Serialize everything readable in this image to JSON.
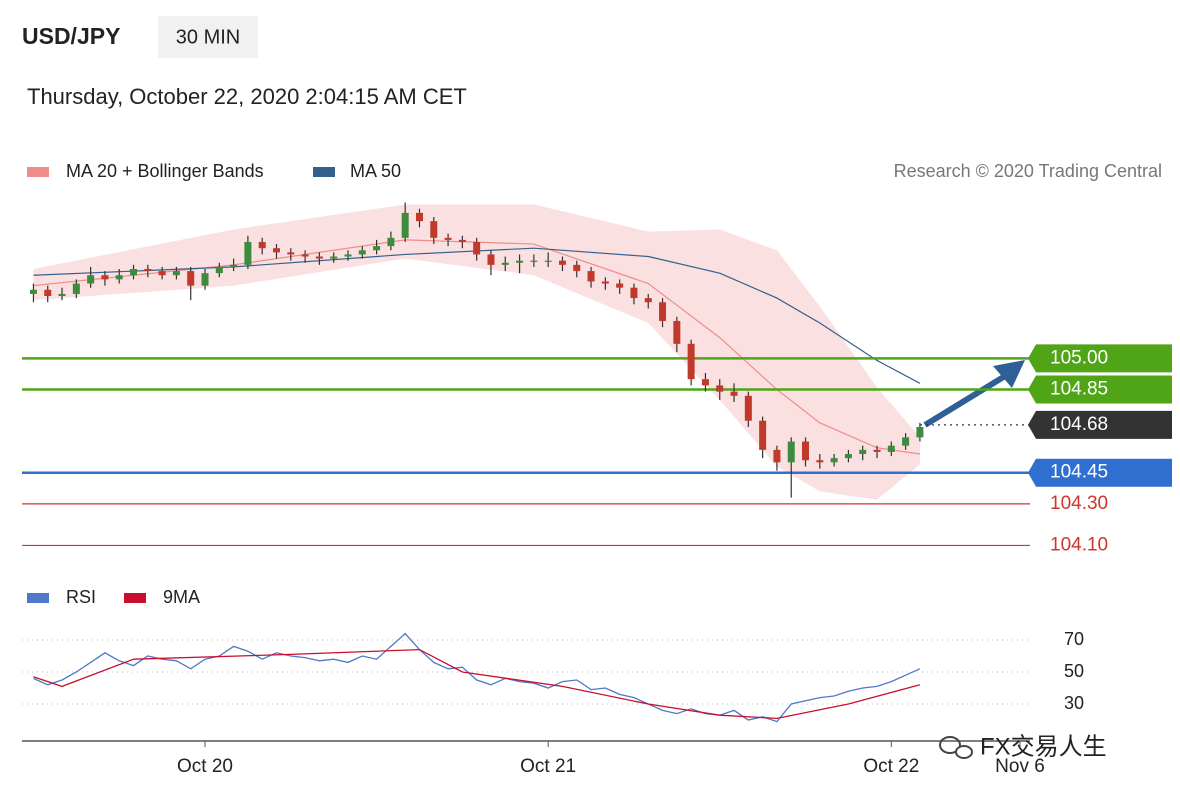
{
  "header": {
    "symbol": "USD/JPY",
    "interval": "30 MIN",
    "timestamp": "Thursday, October 22, 2020 2:04:15 AM CET",
    "source": "Research © 2020 Trading Central"
  },
  "watermark": "FX交易人生",
  "chart_data": [
    {
      "type": "candlestick",
      "up_color": "#3d8b3d",
      "down_color": "#c0392b",
      "xlim": [
        -25.6,
        115.4
      ],
      "ylim": [
        104.03,
        105.81
      ],
      "x": [
        -24,
        -22,
        -20,
        -18,
        -16,
        -14,
        -12,
        -10,
        -8,
        -6,
        -4,
        -2,
        0,
        2,
        4,
        6,
        8,
        10,
        12,
        14,
        16,
        18,
        20,
        22,
        24,
        26,
        28,
        30,
        32,
        34,
        36,
        38,
        40,
        42,
        44,
        46,
        48,
        50,
        52,
        54,
        56,
        58,
        60,
        62,
        64,
        66,
        68,
        70,
        72,
        74,
        76,
        78,
        80,
        82,
        84,
        86,
        88,
        90,
        92,
        94,
        96,
        98,
        100
      ],
      "open": [
        105.31,
        105.33,
        105.3,
        105.31,
        105.36,
        105.4,
        105.38,
        105.4,
        105.43,
        105.42,
        105.4,
        105.42,
        105.35,
        105.41,
        105.44,
        105.45,
        105.56,
        105.53,
        105.51,
        105.5,
        105.49,
        105.48,
        105.49,
        105.5,
        105.52,
        105.54,
        105.58,
        105.7,
        105.66,
        105.58,
        105.57,
        105.56,
        105.5,
        105.45,
        105.46,
        105.47,
        105.47,
        105.47,
        105.45,
        105.42,
        105.37,
        105.36,
        105.34,
        105.29,
        105.27,
        105.18,
        105.07,
        104.9,
        104.87,
        104.84,
        104.82,
        104.7,
        104.56,
        104.5,
        104.6,
        104.51,
        104.5,
        104.52,
        104.54,
        104.56,
        104.55,
        104.58,
        104.62
      ],
      "high": [
        105.36,
        105.35,
        105.34,
        105.38,
        105.44,
        105.42,
        105.43,
        105.45,
        105.45,
        105.44,
        105.44,
        105.44,
        105.43,
        105.46,
        105.48,
        105.59,
        105.58,
        105.55,
        105.53,
        105.52,
        105.51,
        105.51,
        105.52,
        105.54,
        105.57,
        105.61,
        105.75,
        105.72,
        105.68,
        105.6,
        105.59,
        105.58,
        105.52,
        105.49,
        105.5,
        105.5,
        105.51,
        105.49,
        105.47,
        105.44,
        105.39,
        105.38,
        105.36,
        105.31,
        105.29,
        105.2,
        105.09,
        104.93,
        104.9,
        104.88,
        104.84,
        104.72,
        104.58,
        104.62,
        104.62,
        104.54,
        104.54,
        104.56,
        104.58,
        104.58,
        104.6,
        104.64,
        104.69
      ],
      "low": [
        105.27,
        105.27,
        105.28,
        105.29,
        105.34,
        105.35,
        105.36,
        105.38,
        105.39,
        105.38,
        105.38,
        105.28,
        105.33,
        105.39,
        105.42,
        105.43,
        105.5,
        105.48,
        105.47,
        105.46,
        105.45,
        105.46,
        105.47,
        105.48,
        105.5,
        105.52,
        105.56,
        105.63,
        105.55,
        105.54,
        105.53,
        105.47,
        105.4,
        105.42,
        105.41,
        105.44,
        105.44,
        105.42,
        105.39,
        105.34,
        105.33,
        105.31,
        105.26,
        105.24,
        105.15,
        105.03,
        104.87,
        104.84,
        104.8,
        104.79,
        104.67,
        104.52,
        104.46,
        104.33,
        104.48,
        104.47,
        104.48,
        104.5,
        104.51,
        104.52,
        104.53,
        104.56,
        104.6
      ],
      "close": [
        105.33,
        105.3,
        105.31,
        105.36,
        105.4,
        105.38,
        105.4,
        105.43,
        105.42,
        105.4,
        105.42,
        105.35,
        105.41,
        105.44,
        105.45,
        105.56,
        105.53,
        105.51,
        105.5,
        105.49,
        105.48,
        105.49,
        105.5,
        105.52,
        105.54,
        105.58,
        105.7,
        105.66,
        105.58,
        105.57,
        105.56,
        105.5,
        105.45,
        105.46,
        105.47,
        105.47,
        105.47,
        105.45,
        105.42,
        105.37,
        105.36,
        105.34,
        105.29,
        105.27,
        105.18,
        105.07,
        104.9,
        104.87,
        104.84,
        104.82,
        104.7,
        104.56,
        104.5,
        104.6,
        104.51,
        104.5,
        104.52,
        104.54,
        104.56,
        104.55,
        104.58,
        104.62,
        104.67
      ],
      "overlay_x": [
        -24,
        4,
        28,
        46,
        62,
        72,
        80,
        86,
        94,
        100
      ],
      "bands": {
        "name": "MA 20 + Bollinger Bands",
        "color": "#f08c8c",
        "fill": "#f8d3d3",
        "middle": [
          105.35,
          105.45,
          105.57,
          105.55,
          105.36,
          105.1,
          104.85,
          104.69,
          104.57,
          104.54
        ],
        "upper": [
          105.43,
          105.62,
          105.74,
          105.74,
          105.61,
          105.62,
          105.52,
          105.25,
          104.86,
          104.62
        ],
        "lower": [
          105.28,
          105.35,
          105.48,
          105.4,
          105.17,
          104.8,
          104.48,
          104.36,
          104.32,
          104.49
        ]
      },
      "ma50": {
        "name": "MA 50",
        "color": "#34608f",
        "values": [
          105.4,
          105.44,
          105.5,
          105.53,
          105.49,
          105.41,
          105.29,
          105.17,
          104.99,
          104.88
        ]
      },
      "levels": [
        {
          "value": 105,
          "label": "105.00",
          "color": "#4fa516",
          "boxed": true,
          "dashed": false
        },
        {
          "value": 104.85,
          "color": "#4fa516",
          "boxed": true,
          "dashed": false
        },
        {
          "value": 104.68,
          "color": "#333333",
          "boxed": true,
          "dashed": true
        },
        {
          "value": 104.45,
          "color": "#2f6fd0",
          "boxed": true,
          "dashed": false
        },
        {
          "value": 104.3,
          "label": "104.30",
          "color": "#d0342c",
          "boxed": false,
          "dashed": false
        },
        {
          "value": 104.1,
          "label": "104.10",
          "color": "#d0342c",
          "boxed": false,
          "dashed": false
        }
      ]
    },
    {
      "type": "line",
      "xlim": [
        -25.6,
        115.4
      ],
      "ylim": [
        7.5,
        82.5
      ],
      "yticks": [
        30,
        50,
        70
      ],
      "xticks": [
        {
          "value": 0,
          "label": "Oct 20"
        },
        {
          "value": 48,
          "label": "Oct 21"
        },
        {
          "value": 96,
          "label": "Oct 22"
        },
        {
          "value": 114,
          "label": "Nov 6"
        }
      ],
      "series": [
        {
          "name": "RSI",
          "color": "#4e79c8",
          "x": [
            -24,
            -22,
            -20,
            -18,
            -16,
            -14,
            -12,
            -10,
            -8,
            -6,
            -4,
            -2,
            0,
            2,
            4,
            6,
            8,
            10,
            12,
            14,
            16,
            18,
            20,
            22,
            24,
            26,
            28,
            30,
            32,
            34,
            36,
            38,
            40,
            42,
            44,
            46,
            48,
            50,
            52,
            54,
            56,
            58,
            60,
            62,
            64,
            66,
            68,
            70,
            72,
            74,
            76,
            78,
            80,
            82,
            84,
            86,
            88,
            90,
            92,
            94,
            96,
            98,
            100
          ],
          "values": [
            46,
            42,
            45,
            50,
            56,
            62,
            57,
            54,
            60,
            58,
            57,
            52,
            58,
            60,
            66,
            63,
            58,
            62,
            60,
            59,
            57,
            58,
            56,
            60,
            58,
            66,
            74,
            64,
            56,
            52,
            53,
            45,
            42,
            46,
            44,
            43,
            40,
            44,
            45,
            39,
            40,
            36,
            34,
            30,
            26,
            24,
            27,
            24,
            23,
            26,
            20,
            22,
            19,
            30,
            32,
            34,
            35,
            38,
            40,
            41,
            44,
            48,
            52
          ]
        },
        {
          "name": "9MA",
          "color": "#c8102e",
          "x": [
            -24,
            -20,
            -10,
            12,
            30,
            36,
            50,
            62,
            72,
            80,
            90,
            100
          ],
          "values": [
            47,
            41,
            58,
            61,
            64,
            50,
            41,
            30,
            23,
            21,
            30,
            42
          ]
        }
      ]
    }
  ]
}
